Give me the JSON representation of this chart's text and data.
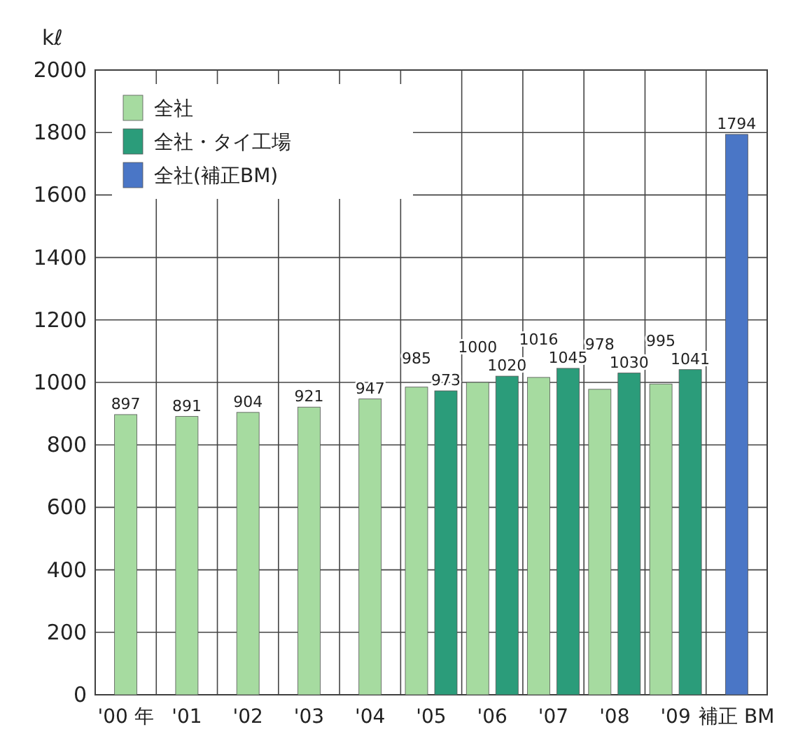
{
  "chart_data": {
    "type": "bar",
    "ylabel": "kℓ",
    "categories": [
      "'00 年",
      "'01",
      "'02",
      "'03",
      "'04",
      "'05",
      "'06",
      "'07",
      "'08",
      "'09",
      "補正 BM"
    ],
    "series": [
      {
        "name": "全社",
        "color": "#a6dba0",
        "values": [
          897,
          891,
          904,
          921,
          947,
          985,
          1000,
          1016,
          978,
          995,
          null
        ]
      },
      {
        "name": "全社・タイ工場",
        "color": "#2b9c7a",
        "values": [
          null,
          null,
          null,
          null,
          null,
          973,
          1020,
          1045,
          1030,
          1041,
          null
        ]
      },
      {
        "name": "全社(補正BM)",
        "color": "#4a76c6",
        "values": [
          null,
          null,
          null,
          null,
          null,
          null,
          null,
          null,
          null,
          null,
          1794
        ]
      }
    ],
    "ylim": [
      0,
      2000
    ],
    "yticks": [
      0,
      200,
      400,
      600,
      800,
      1000,
      1200,
      1400,
      1600,
      1800,
      2000
    ],
    "grid": true,
    "legend": "top left",
    "data_labels": true
  }
}
